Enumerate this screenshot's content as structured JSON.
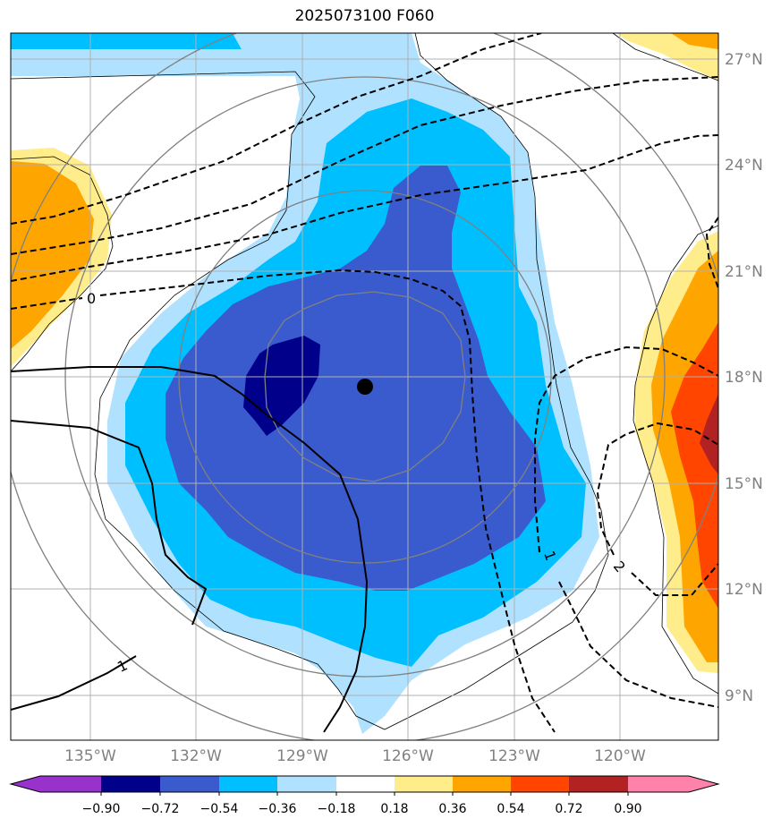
{
  "title": "2025073100 F060",
  "lon_labels": [
    "135°W",
    "132°W",
    "129°W",
    "126°W",
    "123°W",
    "120°W"
  ],
  "lat_labels": [
    "27°N",
    "24°N",
    "21°N",
    "18°N",
    "15°N",
    "12°N",
    "9°N"
  ],
  "contour_labels": [
    "0",
    "1",
    "1",
    "2"
  ],
  "colorbar": {
    "tick_labels": [
      "−0.90",
      "−0.72",
      "−0.54",
      "−0.36",
      "−0.18",
      "0.18",
      "0.36",
      "0.54",
      "0.72",
      "0.90"
    ],
    "colors": [
      "#9932cc",
      "#00008b",
      "#3a5bcd",
      "#00bfff",
      "#b0e2ff",
      "#ffffff",
      "#ffec8b",
      "#ffa500",
      "#ff4500",
      "#b22222",
      "#ff82ab"
    ]
  },
  "center_marker": {
    "lon": -127.3,
    "lat": 17.7
  }
}
